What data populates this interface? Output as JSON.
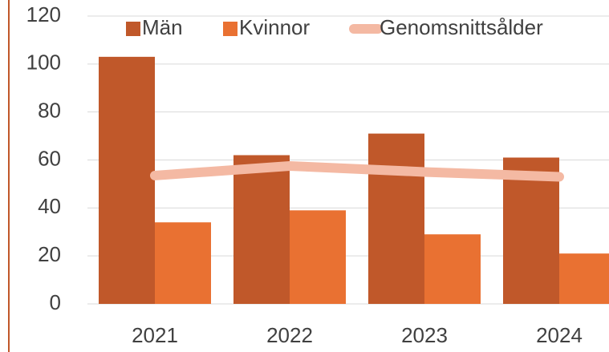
{
  "chart_data": {
    "type": "bar",
    "categories": [
      "2021",
      "2022",
      "2023",
      "2024"
    ],
    "series": [
      {
        "name": "Män",
        "type": "bar",
        "color": "#c0582a",
        "values": [
          103,
          62,
          71,
          61
        ]
      },
      {
        "name": "Kvinnor",
        "type": "bar",
        "color": "#e97132",
        "values": [
          34,
          39,
          29,
          21
        ]
      },
      {
        "name": "Genomsnittsålder",
        "type": "line",
        "color": "#f4b9a3",
        "values": [
          53.5,
          57.5,
          55,
          53
        ]
      }
    ],
    "ylim": [
      0,
      120
    ],
    "yticks": [
      0,
      20,
      40,
      60,
      80,
      100,
      120
    ],
    "grid": true,
    "legend": "top"
  }
}
